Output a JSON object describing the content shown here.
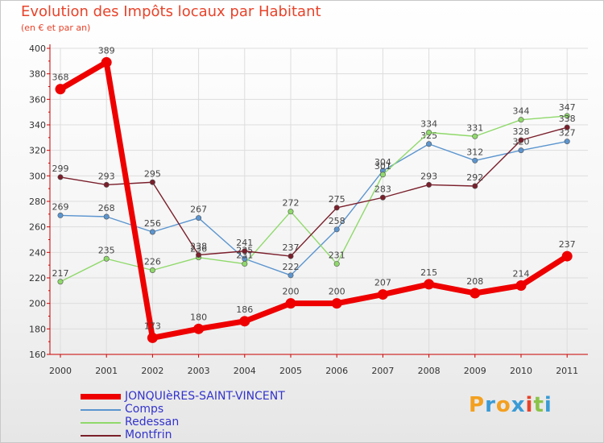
{
  "title": "Evolution des Impôts locaux par Habitant",
  "subtitle": "(en € et par an)",
  "logo": {
    "letters": [
      "P",
      "r",
      "o",
      "x",
      "i",
      "t",
      "i"
    ],
    "colors": [
      "#f3a020",
      "#3a9bd5",
      "#f3a020",
      "#3a9bd5",
      "#e8432a",
      "#8bc34a",
      "#3a9bd5"
    ]
  },
  "chart_data": {
    "type": "line",
    "title": "Evolution des Impôts locaux par Habitant",
    "subtitle": "(en € et par an)",
    "xlabel": "",
    "ylabel": "",
    "ylim": [
      160,
      400
    ],
    "yticks": [
      160,
      180,
      200,
      220,
      240,
      260,
      280,
      300,
      320,
      340,
      360,
      380,
      400
    ],
    "categories": [
      "2000",
      "2001",
      "2002",
      "2003",
      "2004",
      "2005",
      "2006",
      "2007",
      "2008",
      "2009",
      "2010",
      "2011"
    ],
    "series": [
      {
        "name": "JONQUIèRES-SAINT-VINCENT",
        "color": "#ee0000",
        "values": [
          368,
          389,
          173,
          180,
          186,
          200,
          200,
          207,
          215,
          208,
          214,
          237
        ]
      },
      {
        "name": "Comps",
        "color": "#5b95cf",
        "values": [
          269,
          268,
          256,
          267,
          235,
          222,
          258,
          304,
          325,
          312,
          320,
          327
        ]
      },
      {
        "name": "Redessan",
        "color": "#8fd96a",
        "values": [
          217,
          235,
          226,
          236,
          231,
          272,
          231,
          301,
          334,
          331,
          344,
          347
        ]
      },
      {
        "name": "Montfrin",
        "color": "#7a1f2b",
        "values": [
          299,
          293,
          295,
          238,
          241,
          237,
          275,
          283,
          293,
          292,
          328,
          338
        ]
      }
    ]
  }
}
